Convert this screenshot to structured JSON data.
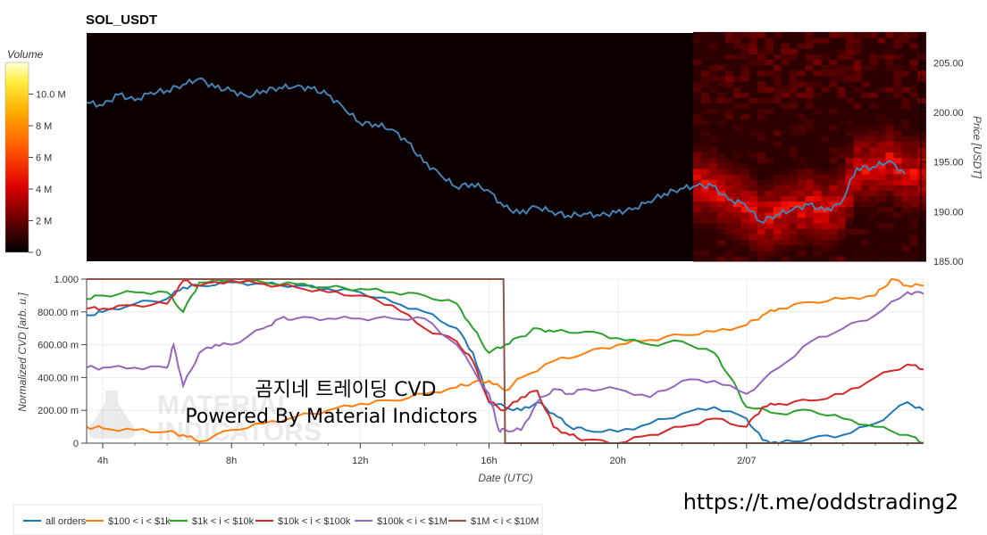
{
  "chart_data": [
    {
      "type": "heatmap",
      "title": "SOL_USDT",
      "ylabel": "Price [USDT]",
      "ylim": [
        185.0,
        208.0
      ],
      "yticks": [
        185.0,
        190.0,
        195.0,
        200.0,
        205.0
      ],
      "ytick_labels": [
        "185.00",
        "190.00",
        "195.00",
        "200.00",
        "205.00"
      ],
      "colorbar": {
        "label": "Volume",
        "ticks": [
          0,
          2000000,
          4000000,
          6000000,
          8000000,
          10000000
        ],
        "tick_labels": [
          "0",
          "2 M",
          "4 M",
          "6 M",
          "8 M",
          "10.0 M"
        ],
        "range": [
          0,
          12000000
        ]
      },
      "heatmap_start_hour": 22.4,
      "price_series": {
        "x_hours": [
          3.5,
          4.0,
          4.5,
          5.0,
          5.5,
          6.0,
          6.5,
          7.0,
          7.5,
          8.0,
          8.5,
          9.0,
          9.5,
          10.0,
          10.5,
          11.0,
          11.5,
          12.0,
          12.5,
          13.0,
          13.5,
          14.0,
          14.5,
          15.0,
          15.5,
          16.0,
          16.5,
          17.0,
          17.5,
          18.0,
          18.5,
          19.0,
          19.5,
          20.0,
          20.5,
          21.0,
          21.5,
          22.0,
          22.5,
          23.0,
          23.5,
          24.0,
          24.5,
          25.0,
          25.5,
          26.0,
          26.5,
          27.0,
          27.5,
          28.0,
          28.5,
          29.0
        ],
        "y": [
          201.0,
          200.7,
          201.8,
          201.2,
          202.0,
          202.2,
          202.8,
          203.4,
          202.5,
          202.2,
          201.6,
          202.2,
          202.5,
          202.6,
          202.4,
          201.8,
          200.5,
          199.0,
          198.8,
          198.3,
          197.0,
          195.0,
          193.8,
          192.5,
          192.8,
          192.2,
          190.5,
          189.8,
          190.5,
          190.0,
          189.6,
          189.8,
          189.6,
          189.9,
          190.2,
          191.0,
          191.8,
          192.3,
          192.6,
          192.6,
          191.2,
          190.8,
          189.0,
          189.7,
          190.2,
          190.7,
          190.1,
          190.8,
          194.4,
          194.5,
          195.1,
          193.8
        ]
      }
    },
    {
      "type": "line",
      "xlabel": "Date (UTC)",
      "ylabel": "Normalized CVD [arb. u.]",
      "ylim": [
        0,
        1
      ],
      "yticks": [
        0,
        0.2,
        0.4,
        0.6,
        0.8,
        1.0
      ],
      "ytick_labels": [
        "0",
        "200.00 m",
        "400.00 m",
        "600.00 m",
        "800.00 m",
        "1.000"
      ],
      "xlim_hours": [
        3.5,
        29.5
      ],
      "xticks_hours": [
        4,
        8,
        12,
        16,
        20,
        24
      ],
      "xtick_labels": [
        "4h",
        "8h",
        "12h",
        "16h",
        "20h",
        "2/07"
      ],
      "series": [
        {
          "name": "all orders",
          "color": "#1f77b4",
          "x": [
            3.5,
            4.0,
            5.0,
            6.0,
            6.5,
            7.0,
            8.0,
            9.0,
            10.0,
            11.0,
            12.0,
            13.0,
            14.0,
            15.0,
            15.5,
            16.0,
            16.5,
            17.0,
            17.5,
            18.0,
            18.5,
            19.0,
            20.0,
            21.0,
            22.0,
            23.0,
            24.0,
            24.5,
            25.0,
            26.0,
            27.0,
            28.0,
            29.0,
            29.5
          ],
          "y": [
            0.78,
            0.8,
            0.85,
            0.88,
            0.95,
            0.96,
            0.98,
            0.97,
            0.96,
            0.94,
            0.92,
            0.86,
            0.8,
            0.7,
            0.55,
            0.25,
            0.22,
            0.2,
            0.25,
            0.18,
            0.1,
            0.08,
            0.07,
            0.12,
            0.18,
            0.22,
            0.15,
            0.02,
            0.0,
            0.03,
            0.05,
            0.12,
            0.25,
            0.2
          ]
        },
        {
          "name": "$100 < i < $1k",
          "color": "#ff7f0e",
          "x": [
            3.5,
            4.0,
            5.0,
            6.0,
            6.5,
            7.0,
            8.0,
            9.0,
            10.0,
            11.0,
            12.0,
            13.0,
            14.0,
            15.0,
            15.5,
            16.0,
            16.5,
            17.0,
            18.0,
            19.0,
            20.0,
            21.0,
            22.0,
            23.0,
            24.0,
            24.5,
            25.0,
            26.0,
            27.0,
            28.0,
            28.5,
            29.0,
            29.5
          ],
          "y": [
            0.1,
            0.09,
            0.08,
            0.07,
            0.05,
            0.01,
            0.08,
            0.12,
            0.16,
            0.2,
            0.24,
            0.26,
            0.3,
            0.34,
            0.37,
            0.38,
            0.32,
            0.4,
            0.5,
            0.55,
            0.6,
            0.63,
            0.66,
            0.68,
            0.72,
            0.78,
            0.82,
            0.86,
            0.88,
            0.9,
            1.0,
            0.96,
            0.96
          ]
        },
        {
          "name": "$1k < i < $10k",
          "color": "#2ca02c",
          "x": [
            3.5,
            4.0,
            5.0,
            6.0,
            6.5,
            7.0,
            8.0,
            9.0,
            10.0,
            11.0,
            12.0,
            13.0,
            14.0,
            15.0,
            15.5,
            16.0,
            16.5,
            17.0,
            17.5,
            18.0,
            19.0,
            20.0,
            21.0,
            22.0,
            23.0,
            23.5,
            24.0,
            25.0,
            26.0,
            27.0,
            28.0,
            29.0,
            29.5
          ],
          "y": [
            0.88,
            0.9,
            0.92,
            0.92,
            0.8,
            0.98,
            0.99,
            0.98,
            0.97,
            0.95,
            0.94,
            0.92,
            0.9,
            0.85,
            0.7,
            0.55,
            0.6,
            0.65,
            0.7,
            0.68,
            0.68,
            0.64,
            0.6,
            0.62,
            0.55,
            0.4,
            0.22,
            0.18,
            0.2,
            0.15,
            0.1,
            0.05,
            0.0
          ]
        },
        {
          "name": "$10k < i < $100k",
          "color": "#d62728",
          "x": [
            3.5,
            4.0,
            5.0,
            6.0,
            6.5,
            7.0,
            8.0,
            9.0,
            10.0,
            11.0,
            12.0,
            13.0,
            14.0,
            15.0,
            15.5,
            16.0,
            16.5,
            17.0,
            17.5,
            18.0,
            18.5,
            19.0,
            20.0,
            21.0,
            22.0,
            23.0,
            24.0,
            24.5,
            25.0,
            26.0,
            27.0,
            28.0,
            29.0,
            29.5
          ],
          "y": [
            0.82,
            0.82,
            0.84,
            0.85,
            0.99,
            0.96,
            0.99,
            0.97,
            0.95,
            0.92,
            0.9,
            0.84,
            0.7,
            0.62,
            0.5,
            0.25,
            0.2,
            0.28,
            0.32,
            0.1,
            0.05,
            0.02,
            0.0,
            0.05,
            0.1,
            0.15,
            0.1,
            0.22,
            0.24,
            0.26,
            0.3,
            0.4,
            0.48,
            0.45
          ]
        },
        {
          "name": "$100k < i < $1M",
          "color": "#9467bd",
          "x": [
            3.5,
            4.0,
            5.0,
            6.0,
            6.2,
            6.5,
            7.0,
            7.5,
            8.0,
            9.0,
            9.5,
            10.0,
            11.0,
            12.0,
            13.0,
            14.0,
            15.0,
            16.0,
            16.3,
            16.5,
            17.0,
            17.5,
            18.0,
            18.5,
            19.0,
            20.0,
            21.0,
            22.0,
            23.0,
            24.0,
            25.0,
            26.0,
            27.0,
            28.0,
            29.0,
            29.5
          ],
          "y": [
            0.46,
            0.46,
            0.46,
            0.46,
            0.6,
            0.35,
            0.55,
            0.6,
            0.6,
            0.7,
            0.76,
            0.76,
            0.76,
            0.76,
            0.76,
            0.76,
            0.6,
            0.3,
            0.08,
            0.08,
            0.08,
            0.25,
            0.33,
            0.3,
            0.33,
            0.33,
            0.28,
            0.38,
            0.38,
            0.3,
            0.46,
            0.62,
            0.7,
            0.78,
            0.92,
            0.91
          ]
        },
        {
          "name": "$1M < i < $10M",
          "color": "#8c564b",
          "x": [
            3.5,
            16.45,
            16.5,
            29.5
          ],
          "y": [
            1.0,
            1.0,
            0.0,
            0.0
          ]
        }
      ]
    }
  ],
  "overlay": {
    "watermark_text": "MATERIAL INDICATORS",
    "title_ko": "곰지네 트레이딩 CVD",
    "powered_by": "Powered By Material Indictors",
    "telegram_link": "https://t.me/oddstrading2"
  }
}
